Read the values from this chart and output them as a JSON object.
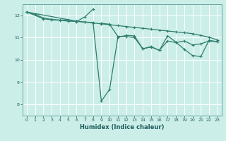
{
  "xlabel": "Humidex (Indice chaleur)",
  "bg_color": "#cceee8",
  "grid_color": "#ffffff",
  "line_color": "#2e7d6e",
  "xlim": [
    -0.5,
    23.5
  ],
  "ylim": [
    7.5,
    12.5
  ],
  "xticks": [
    0,
    1,
    2,
    3,
    4,
    5,
    6,
    7,
    8,
    9,
    10,
    11,
    12,
    13,
    14,
    15,
    16,
    17,
    18,
    19,
    20,
    21,
    22,
    23
  ],
  "yticks": [
    8,
    9,
    10,
    11,
    12
  ],
  "line1_x": [
    0,
    1,
    2,
    3,
    4,
    5,
    6,
    7,
    8
  ],
  "line1_y": [
    12.15,
    12.05,
    11.88,
    11.82,
    11.79,
    11.79,
    11.72,
    11.93,
    12.28
  ],
  "line2_x": [
    0,
    2,
    3,
    4,
    5,
    6,
    7,
    8,
    9,
    10,
    11,
    12,
    13,
    14,
    15,
    16,
    17,
    18,
    19,
    20,
    21,
    22,
    23
  ],
  "line2_y": [
    12.15,
    11.85,
    11.8,
    11.78,
    11.74,
    11.73,
    11.7,
    11.68,
    8.15,
    8.68,
    11.02,
    11.1,
    11.08,
    10.5,
    10.6,
    10.43,
    11.08,
    10.8,
    10.48,
    10.2,
    10.15,
    10.88,
    10.82
  ],
  "line3_x": [
    0,
    6,
    7,
    8,
    9,
    10,
    11,
    12,
    13,
    14,
    15,
    16,
    17,
    18,
    19,
    20,
    21,
    22,
    23
  ],
  "line3_y": [
    12.15,
    11.74,
    11.7,
    11.66,
    11.62,
    11.58,
    11.54,
    11.5,
    11.46,
    11.42,
    11.38,
    11.34,
    11.3,
    11.26,
    11.22,
    11.18,
    11.1,
    11.02,
    10.9
  ],
  "line4_x": [
    9,
    10,
    11,
    12,
    13,
    14,
    15,
    16,
    17,
    18,
    19,
    20,
    21,
    22,
    23
  ],
  "line4_y": [
    11.65,
    11.6,
    11.05,
    11.05,
    11.0,
    10.5,
    10.58,
    10.43,
    10.85,
    10.78,
    10.85,
    10.68,
    10.72,
    10.85,
    10.82
  ]
}
